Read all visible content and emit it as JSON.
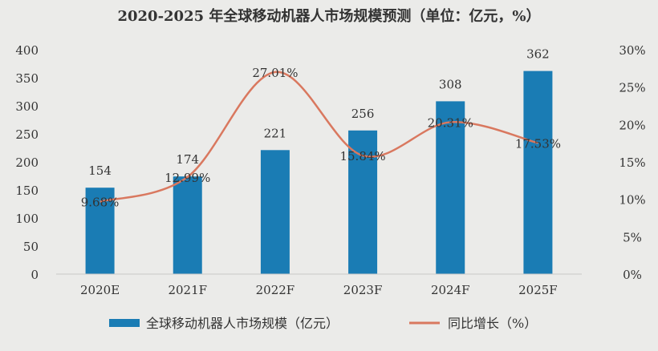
{
  "chart_data": {
    "type": "bar",
    "title": "2020-2025 年全球移动机器人市场规模预测（单位：亿元，%）",
    "categories": [
      "2020E",
      "2021F",
      "2022F",
      "2023F",
      "2024F",
      "2025F"
    ],
    "series": [
      {
        "name": "全球移动机器人市场规模（亿元）",
        "type": "bar",
        "axis": "left",
        "values": [
          154,
          174,
          221,
          256,
          308,
          362
        ],
        "labels": [
          "154",
          "174",
          "221",
          "256",
          "308",
          "362"
        ]
      },
      {
        "name": "同比增长（%）",
        "type": "line",
        "axis": "right",
        "values": [
          9.68,
          12.99,
          27.01,
          15.84,
          20.31,
          17.53
        ],
        "labels": [
          "9.68%",
          "12.99%",
          "27.01%",
          "15.84%",
          "20.31%",
          "17.53%"
        ]
      }
    ],
    "y_left": {
      "lim": [
        0,
        400
      ],
      "ticks": [
        0,
        50,
        100,
        150,
        200,
        250,
        300,
        350,
        400
      ],
      "tick_labels": [
        "0",
        "50",
        "100",
        "150",
        "200",
        "250",
        "300",
        "350",
        "400"
      ]
    },
    "y_right": {
      "lim": [
        0,
        30
      ],
      "ticks": [
        0,
        5,
        10,
        15,
        20,
        25,
        30
      ],
      "tick_labels": [
        "0%",
        "5%",
        "10%",
        "15%",
        "20%",
        "25%",
        "30%"
      ]
    },
    "grid": false,
    "legend_position": "bottom",
    "colors": {
      "bar": "#1a7cb4",
      "line": "#d9785f",
      "text": "#333333",
      "background": "#ebebe9"
    }
  }
}
